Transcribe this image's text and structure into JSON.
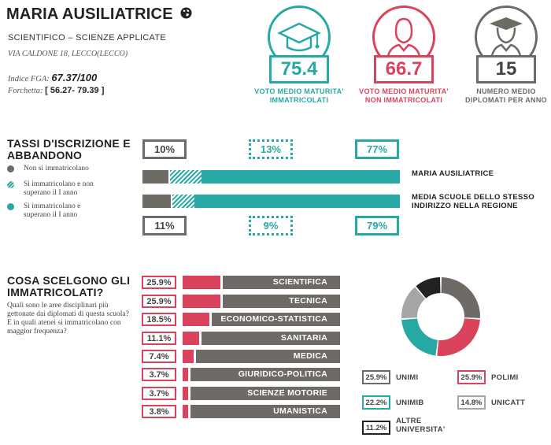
{
  "school": {
    "name": "MARIA AUSILIATRICE",
    "type": "SCIENTIFICO – SCIENZE APPLICATE",
    "address": "VIA CALDONE 18, LECCO(LECCO)",
    "fga_label": "Indice FGA:",
    "fga_value": "67.37/100",
    "fork_label": "Forchetta:",
    "fork_value": "[ 56.27- 79.39 ]"
  },
  "colors": {
    "teal": "#26a9a4",
    "red": "#d9435b",
    "gray": "#6e6a66",
    "light_gray": "#a6a6a6",
    "black": "#222222"
  },
  "kpis": [
    {
      "value": "75.4",
      "label_line1": "VOTO MEDIO MATURITA'",
      "label_line2": "IMMATRICOLATI",
      "icon": "graduation-cap-icon",
      "color": "#26a9a4"
    },
    {
      "value": "66.7",
      "label_line1": "VOTO MEDIO MATURITA'",
      "label_line2": "NON IMMATRICOLATI",
      "icon": "person-icon",
      "color": "#d9435b"
    },
    {
      "value": "15",
      "label_line1": "NUMERO MEDIO",
      "label_line2": "DIPLOMATI PER ANNO",
      "icon": "graduate-person-icon",
      "color": "#6e6a66"
    }
  ],
  "enrollment": {
    "title_line1": "TASSI D'ISCRIZIONE E",
    "title_line2": "ABBANDONO",
    "legend": [
      {
        "line1": "Non si immatricolano",
        "line2": ""
      },
      {
        "line1": "Si immatricolano e non",
        "line2": "superano il I anno"
      },
      {
        "line1": "Si immatricolano e",
        "line2": "superano il I anno"
      }
    ],
    "school_row": {
      "label": "MARIA AUSILIATRICE",
      "not_enrolled": 10,
      "dropped": 13,
      "passed": 77,
      "not_enrolled_label": "10%",
      "dropped_label": "13%",
      "passed_label": "77%"
    },
    "region_row": {
      "label_line1": "MEDIA SCUOLE DELLO STESSO",
      "label_line2": "INDIRIZZO NELLA REGIONE",
      "not_enrolled": 11,
      "dropped": 9,
      "passed": 79,
      "not_enrolled_label": "11%",
      "dropped_label": "9%",
      "passed_label": "79%"
    }
  },
  "choices": {
    "title_line1": "COSA SCELGONO GLI",
    "title_line2": "IMMATRICOLATI?",
    "question1": "Quali sono le aree disciplinari più gettonate dai diplomati di questa scuola?",
    "question2": "E in quali atenei si immatricolano con maggior frequenza?",
    "areas": [
      {
        "pct": "25.9%",
        "value": 25.9,
        "label": "SCIENTIFICA"
      },
      {
        "pct": "25.9%",
        "value": 25.9,
        "label": "TECNICA"
      },
      {
        "pct": "18.5%",
        "value": 18.5,
        "label": "ECONOMICO-STATISTICA"
      },
      {
        "pct": "11.1%",
        "value": 11.1,
        "label": "SANITARIA"
      },
      {
        "pct": "7.4%",
        "value": 7.4,
        "label": "MEDICA"
      },
      {
        "pct": "3.7%",
        "value": 3.7,
        "label": "GIURIDICO-POLITICA"
      },
      {
        "pct": "3.7%",
        "value": 3.7,
        "label": "SCIENZE MOTORIE"
      },
      {
        "pct": "3.8%",
        "value": 3.8,
        "label": "UMANISTICA"
      }
    ]
  },
  "universities": [
    {
      "pct": "25.9%",
      "value": 25.9,
      "label": "UNIMI",
      "color": "#6e6a66"
    },
    {
      "pct": "25.9%",
      "value": 25.9,
      "label": "POLIMI",
      "color": "#d9435b"
    },
    {
      "pct": "22.2%",
      "value": 22.2,
      "label": "UNIMIB",
      "color": "#26a9a4"
    },
    {
      "pct": "14.8%",
      "value": 14.8,
      "label": "UNICATT",
      "color": "#a6a6a6"
    },
    {
      "pct": "11.2%",
      "value": 11.2,
      "label_line1": "ALTRE",
      "label_line2": "UNIVERSITA'",
      "color": "#222222"
    }
  ]
}
